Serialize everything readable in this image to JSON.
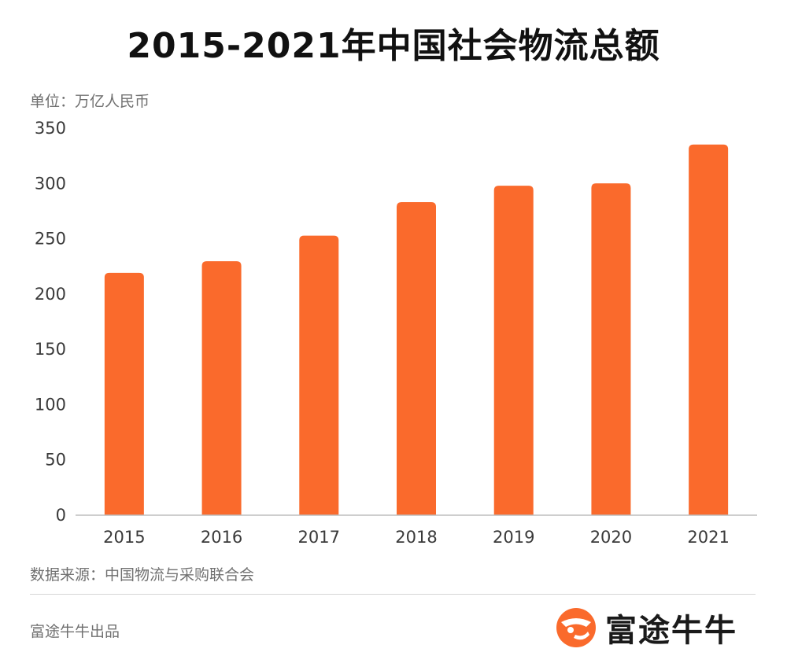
{
  "title": "2015-2021年中国社会物流总额",
  "unit_label": "单位：万亿人民币",
  "source_label": "数据来源：中国物流与采购联合会",
  "producer_label": "富途牛牛出品",
  "brand": {
    "name": "富途牛牛",
    "icon": "futu-bull-logo-icon",
    "color": "#fa6a2c"
  },
  "chart_data": {
    "type": "bar",
    "categories": [
      "2015",
      "2016",
      "2017",
      "2018",
      "2019",
      "2020",
      "2021"
    ],
    "values": [
      219.2,
      229.7,
      252.8,
      283.1,
      298.0,
      300.1,
      335.2
    ],
    "ylim": [
      0,
      350
    ],
    "yticks": [
      0,
      50,
      100,
      150,
      200,
      250,
      300,
      350
    ],
    "bar_color": "#fa6a2c",
    "grid": false,
    "xlabel": "",
    "ylabel": ""
  }
}
